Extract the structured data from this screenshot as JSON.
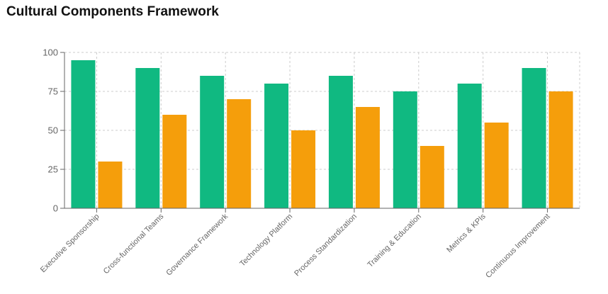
{
  "chart_data": {
    "type": "bar",
    "title": "Cultural Components Framework",
    "categories": [
      "Executive Sponsorship",
      "Cross-functional Teams",
      "Governance Framework",
      "Technology Platform",
      "Process Standardization",
      "Training & Education",
      "Metrics & KPIs",
      "Continuous Improvement"
    ],
    "series": [
      {
        "name": "Series 1",
        "color": "#10b981",
        "values": [
          95,
          90,
          85,
          80,
          85,
          75,
          80,
          90
        ]
      },
      {
        "name": "Series 2",
        "color": "#f59e0b",
        "values": [
          30,
          60,
          70,
          50,
          65,
          40,
          55,
          75
        ]
      }
    ],
    "xlabel": "",
    "ylabel": "",
    "ylim": [
      0,
      100
    ],
    "yticks": [
      0,
      25,
      50,
      75,
      100
    ],
    "grid": true,
    "legend": "none"
  }
}
